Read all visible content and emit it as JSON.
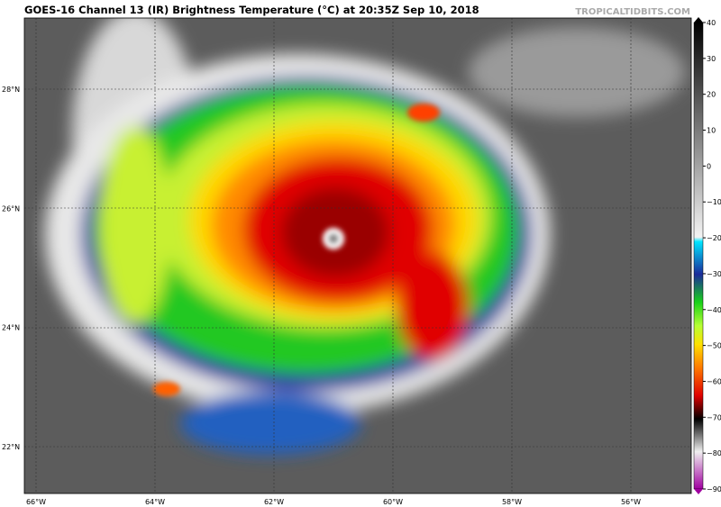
{
  "header": {
    "title": "GOES-16 Channel 13 (IR) Brightness Temperature (°C) at 20:35Z Sep 10, 2018",
    "watermark": "TROPICALTIDBITS.COM"
  },
  "map": {
    "lat_labels": [
      "28°N",
      "26°N",
      "24°N",
      "22°N"
    ],
    "lon_labels": [
      "66°W",
      "64°W",
      "62°W",
      "60°W",
      "58°W",
      "56°W"
    ]
  },
  "colorbar": {
    "ticks": [
      "40",
      "30",
      "20",
      "10",
      "0",
      "−10",
      "−20",
      "−30",
      "−40",
      "−50",
      "−60",
      "−70",
      "−80",
      "−90"
    ]
  }
}
